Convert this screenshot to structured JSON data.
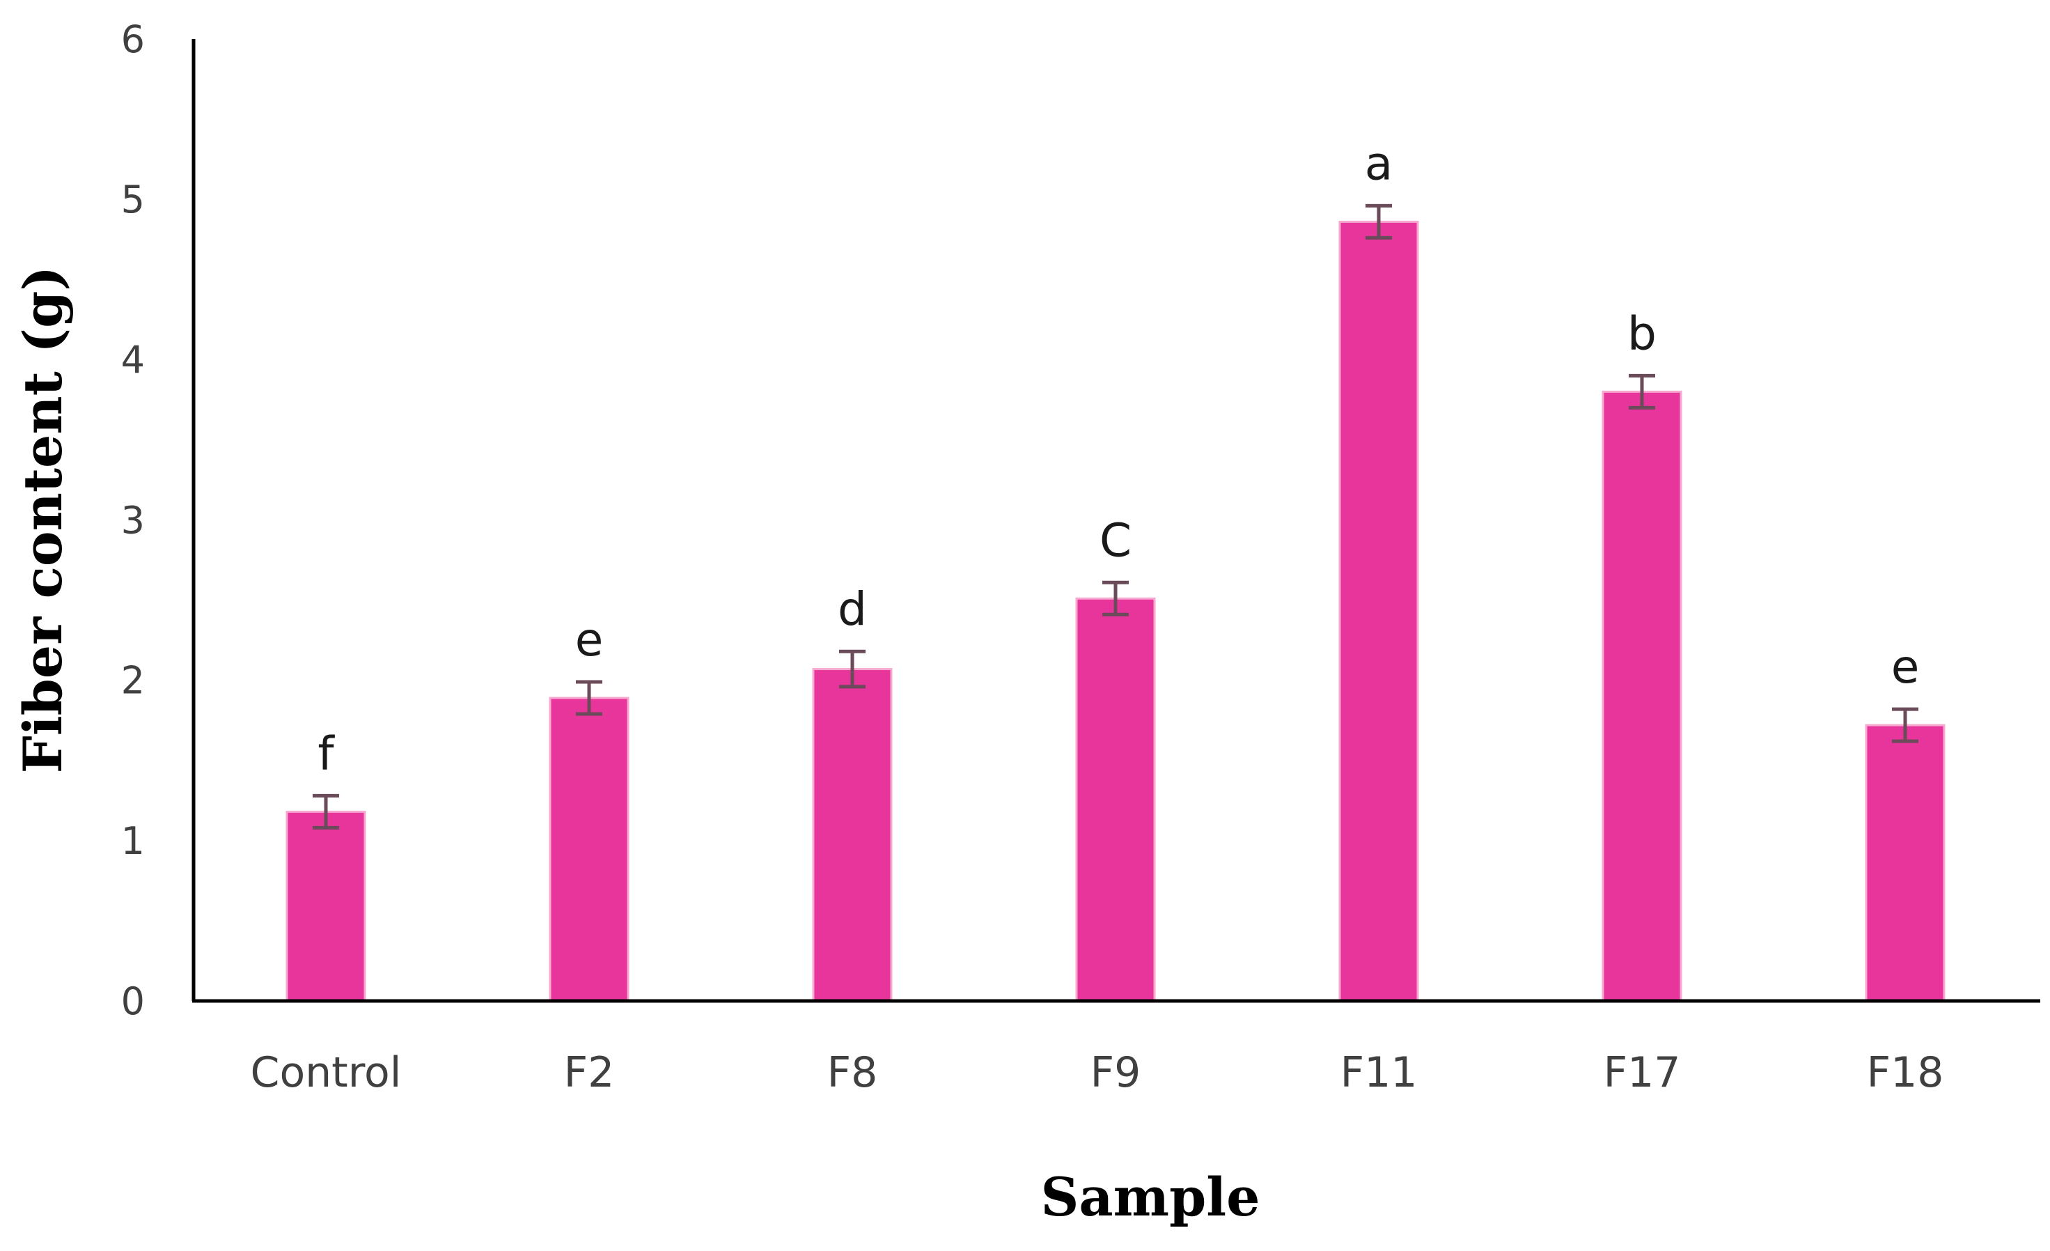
{
  "chart_data": {
    "type": "bar",
    "xlabel": "Sample",
    "ylabel": "Fiber content (g)",
    "categories": [
      "Control",
      "F2",
      "F8",
      "F9",
      "F11",
      "F17",
      "F18"
    ],
    "values": [
      1.18,
      1.89,
      2.07,
      2.51,
      4.86,
      3.8,
      1.72
    ],
    "error": [
      0.1,
      0.1,
      0.11,
      0.1,
      0.1,
      0.1,
      0.1
    ],
    "significance_letters": [
      "f",
      "e",
      "d",
      "C",
      "a",
      "b",
      "e"
    ],
    "ylim": [
      0,
      6
    ],
    "yticks": [
      "0",
      "1",
      "2",
      "3",
      "4",
      "5",
      "6"
    ],
    "grid": false,
    "legend": "none",
    "bar_color": "#e8359b",
    "bar_edge_color": "#f7a8cf",
    "error_bar_color": "#6b4a5a"
  }
}
